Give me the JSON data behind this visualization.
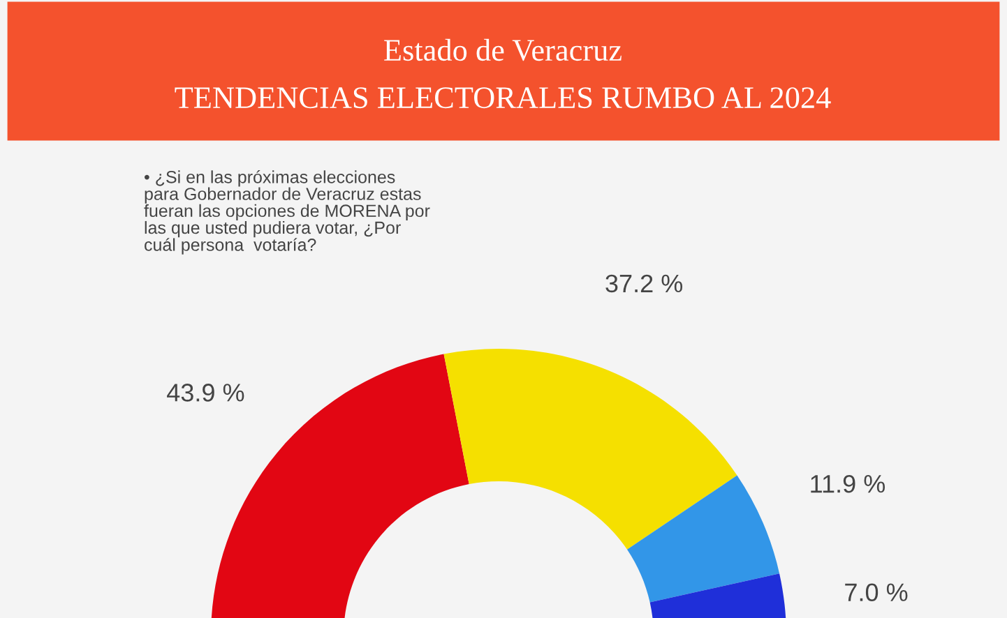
{
  "chart_data": {
    "type": "donut",
    "title": "Estado de Veracruz",
    "subtitle": "TENDENCIAS ELECTORALES RUMBO AL 2024",
    "annotations": [
      "• ¿Si en las próximas elecciones\npara Gobernador de Veracruz estas\nfueran las opciones de MORENA por\nlas que usted pudiera votar, ¿Por\ncuál persona  votaría?"
    ],
    "categories": [
      null,
      null,
      null,
      null
    ],
    "values": [
      43.9,
      37.2,
      11.9,
      7.0
    ],
    "value_labels": [
      "43.9 %",
      "37.2 %",
      "11.9 %",
      "7.0 %"
    ],
    "colors": [
      "#e20613",
      "#f5e000",
      "#3296e8",
      "#1f2fd9"
    ]
  }
}
